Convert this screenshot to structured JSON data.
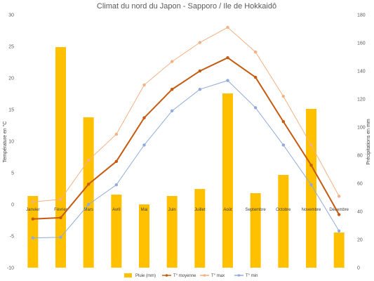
{
  "chart_data": {
    "type": "bar+line",
    "title": "Climat du nord du Japon - Sapporo / Ile de Hokkaidô",
    "ylabel_left": "Température en °C",
    "ylabel_right": "Précipitations en mm",
    "ylim_left": [
      -10,
      30
    ],
    "yticks_left": [
      "-10",
      "-5",
      "0",
      "5",
      "10",
      "15",
      "20",
      "25",
      "30"
    ],
    "ylim_right": [
      0,
      180
    ],
    "yticks_right": [
      "0",
      "20",
      "40",
      "60",
      "80",
      "100",
      "120",
      "140",
      "160",
      "180"
    ],
    "grid": false,
    "legend_position": "bottom",
    "categories": [
      "Janvier",
      "Février",
      "Mars",
      "Avril",
      "Mai",
      "Juin",
      "Juillet",
      "Août",
      "Septembre",
      "Octobre",
      "Novembre",
      "Décembre"
    ],
    "bars": {
      "name": "Pluie (mm)",
      "axis": "right",
      "color": "#FFC000",
      "values": [
        51,
        157,
        107,
        52,
        45,
        51,
        56,
        124,
        53,
        66,
        113,
        25
      ]
    },
    "series": [
      {
        "name": "T° moyenne",
        "axis": "left",
        "color": "#C55A11",
        "values": [
          -2.3,
          -2.1,
          3.2,
          6.8,
          13.7,
          18.2,
          21.1,
          23.2,
          20.1,
          13.1,
          6.2,
          -1.6
        ]
      },
      {
        "name": "T° max",
        "axis": "left",
        "color": "#F4B183",
        "values": [
          0.4,
          0.8,
          7.0,
          11.1,
          18.9,
          22.6,
          25.6,
          28.0,
          24.1,
          17.1,
          9.4,
          1.3
        ]
      },
      {
        "name": "T° min",
        "axis": "left",
        "color": "#8FAADC",
        "values": [
          -5.3,
          -5.2,
          0.0,
          3.1,
          9.4,
          14.8,
          18.2,
          19.6,
          15.3,
          9.4,
          3.1,
          -4.2
        ]
      }
    ]
  }
}
